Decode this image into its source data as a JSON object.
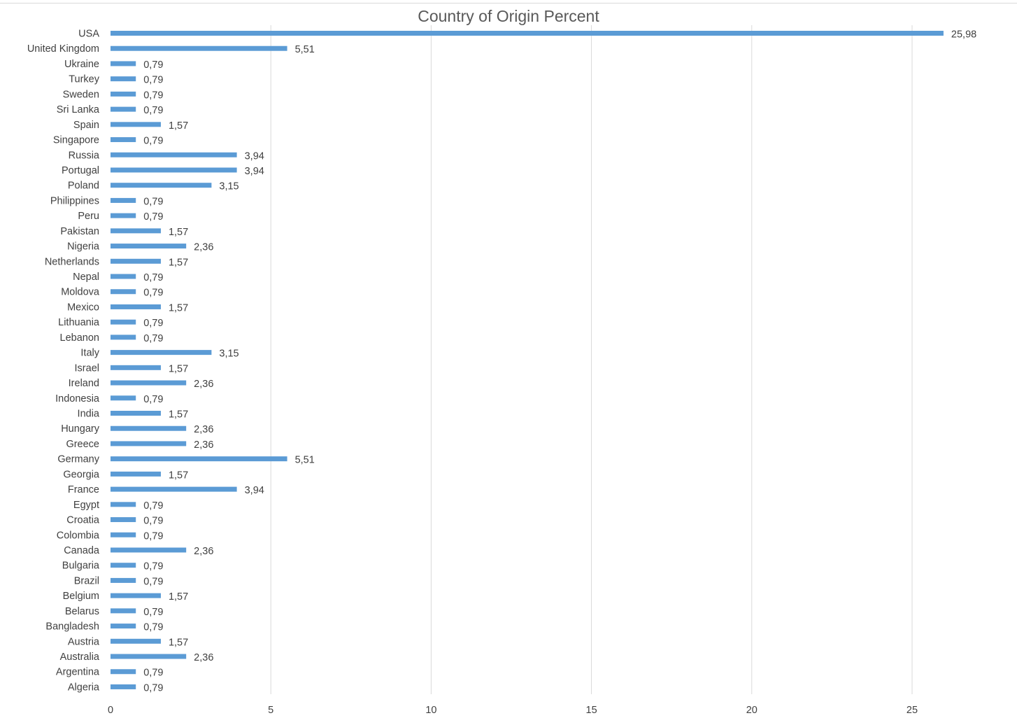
{
  "chart_data": {
    "type": "bar",
    "orientation": "horizontal",
    "title": "Country of Origin Percent",
    "xlabel": "",
    "ylabel": "",
    "xlim": [
      0,
      25
    ],
    "xticks": [
      0,
      5,
      10,
      15,
      20,
      25
    ],
    "grid": "vertical",
    "bar_color": "#5b9bd5",
    "categories": [
      "USA",
      "United Kingdom",
      "Ukraine",
      "Turkey",
      "Sweden",
      "Sri Lanka",
      "Spain",
      "Singapore",
      "Russia",
      "Portugal",
      "Poland",
      "Philippines",
      "Peru",
      "Pakistan",
      "Nigeria",
      "Netherlands",
      "Nepal",
      "Moldova",
      "Mexico",
      "Lithuania",
      "Lebanon",
      "Italy",
      "Israel",
      "Ireland",
      "Indonesia",
      "India",
      "Hungary",
      "Greece",
      "Germany",
      "Georgia",
      "France",
      "Egypt",
      "Croatia",
      "Colombia",
      "Canada",
      "Bulgaria",
      "Brazil",
      "Belgium",
      "Belarus",
      "Bangladesh",
      "Austria",
      "Australia",
      "Argentina",
      "Algeria"
    ],
    "values": [
      25.98,
      5.51,
      0.79,
      0.79,
      0.79,
      0.79,
      1.57,
      0.79,
      3.94,
      3.94,
      3.15,
      0.79,
      0.79,
      1.57,
      2.36,
      1.57,
      0.79,
      0.79,
      1.57,
      0.79,
      0.79,
      3.15,
      1.57,
      2.36,
      0.79,
      1.57,
      2.36,
      2.36,
      5.51,
      1.57,
      3.94,
      0.79,
      0.79,
      0.79,
      2.36,
      0.79,
      0.79,
      1.57,
      0.79,
      0.79,
      1.57,
      2.36,
      0.79,
      0.79
    ],
    "data_labels": [
      "25,98",
      "5,51",
      "0,79",
      "0,79",
      "0,79",
      "0,79",
      "1,57",
      "0,79",
      "3,94",
      "3,94",
      "3,15",
      "0,79",
      "0,79",
      "1,57",
      "2,36",
      "1,57",
      "0,79",
      "0,79",
      "1,57",
      "0,79",
      "0,79",
      "3,15",
      "1,57",
      "2,36",
      "0,79",
      "1,57",
      "2,36",
      "2,36",
      "5,51",
      "1,57",
      "3,94",
      "0,79",
      "0,79",
      "0,79",
      "2,36",
      "0,79",
      "0,79",
      "1,57",
      "0,79",
      "0,79",
      "1,57",
      "2,36",
      "0,79",
      "0,79"
    ]
  }
}
